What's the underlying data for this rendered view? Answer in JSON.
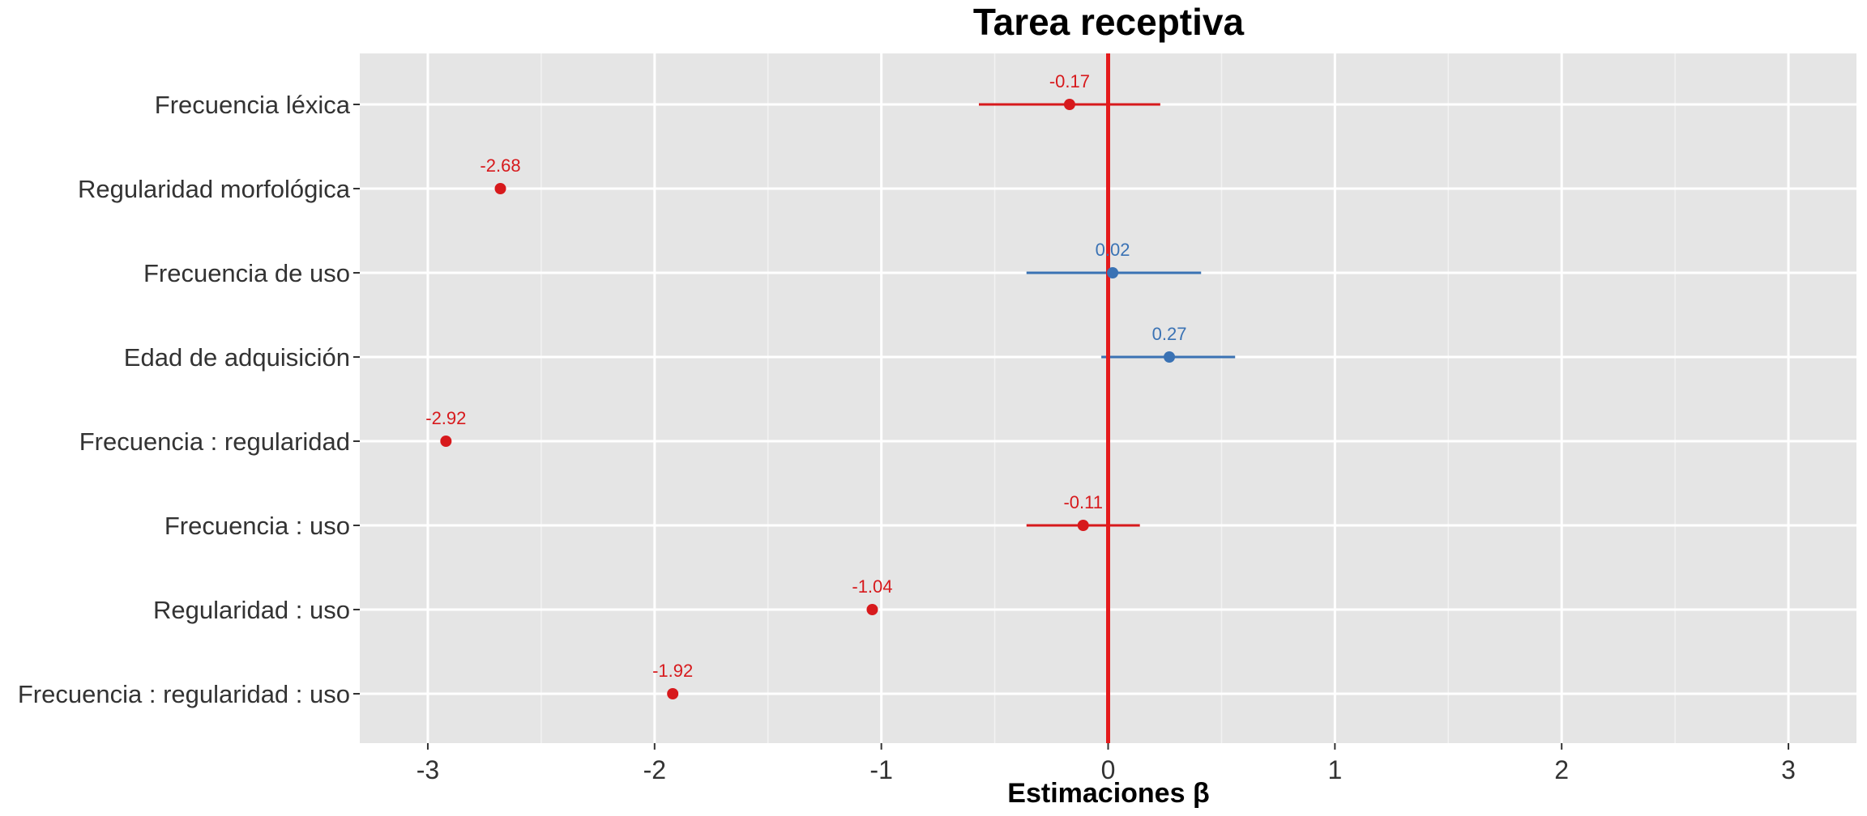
{
  "chart_data": {
    "type": "scatter",
    "subtype": "coefficient-plot",
    "title": "Tarea receptiva",
    "xlabel": "Estimaciones β",
    "ylabel": "",
    "xlim": [
      -3.3,
      3.3
    ],
    "xticks": [
      -3,
      -2,
      -1,
      0,
      1,
      2,
      3
    ],
    "xtick_labels": [
      "-3",
      "-2",
      "-1",
      "0",
      "1",
      "2",
      "3"
    ],
    "grid": true,
    "legend": "none",
    "reference_line": {
      "x": 0,
      "color": "#e41a1c"
    },
    "colors": {
      "negative": "#d7191c",
      "positive": "#3a72b4"
    },
    "categories": [
      "Frecuencia léxica",
      "Regularidad morfológica",
      "Frecuencia de uso",
      "Edad de adquisición",
      "Frecuencia : regularidad",
      "Frecuencia : uso",
      "Regularidad : uso",
      "Frecuencia : regularidad : uso"
    ],
    "points": [
      {
        "term": "Frecuencia léxica",
        "estimate": -0.17,
        "label": "-0.17",
        "ci_low": -0.57,
        "ci_high": 0.23,
        "sign": "negative"
      },
      {
        "term": "Regularidad morfológica",
        "estimate": -2.68,
        "label": "-2.68",
        "ci_low": null,
        "ci_high": null,
        "sign": "negative"
      },
      {
        "term": "Frecuencia de uso",
        "estimate": 0.02,
        "label": "0.02",
        "ci_low": -0.36,
        "ci_high": 0.41,
        "sign": "positive"
      },
      {
        "term": "Edad de adquisición",
        "estimate": 0.27,
        "label": "0.27",
        "ci_low": -0.03,
        "ci_high": 0.56,
        "sign": "positive"
      },
      {
        "term": "Frecuencia : regularidad",
        "estimate": -2.92,
        "label": "-2.92",
        "ci_low": null,
        "ci_high": null,
        "sign": "negative"
      },
      {
        "term": "Frecuencia : uso",
        "estimate": -0.11,
        "label": "-0.11",
        "ci_low": -0.36,
        "ci_high": 0.14,
        "sign": "negative"
      },
      {
        "term": "Regularidad : uso",
        "estimate": -1.04,
        "label": "-1.04",
        "ci_low": null,
        "ci_high": null,
        "sign": "negative"
      },
      {
        "term": "Frecuencia : regularidad : uso",
        "estimate": -1.92,
        "label": "-1.92",
        "ci_low": null,
        "ci_high": null,
        "sign": "negative"
      }
    ]
  }
}
